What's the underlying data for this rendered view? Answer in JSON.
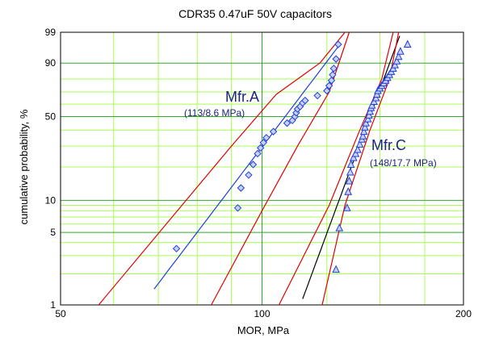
{
  "chart_data": {
    "type": "scatter",
    "title": "CDR35 0.47uF 50V capacitors",
    "xlabel": "MOR, MPa",
    "ylabel": "cumulative probability, %",
    "x_scale": "log",
    "y_scale": "weibull-probability",
    "xlim": [
      50,
      200
    ],
    "ylim": [
      1,
      99
    ],
    "x_ticks": [
      50,
      100,
      200
    ],
    "y_ticks": [
      1,
      5,
      10,
      50,
      90,
      99
    ],
    "grid": true,
    "colors": {
      "major_grid": "#2eaa2e",
      "minor_grid": "#aaff55",
      "fit_line": "#1f3fd6",
      "confidence_bounds": "#e00000",
      "mfr_c_fit_line": "#000000",
      "markers": "#1f3fd6",
      "annotation": "#1a237e"
    },
    "annotations": [
      {
        "text": "Mfr.A",
        "subtext": "(113/8.6 MPa)"
      },
      {
        "text": "Mfr.C",
        "subtext": "(148/17.7 MPa)"
      }
    ],
    "series": [
      {
        "name": "Mfr.A",
        "marker": "diamond",
        "points": [
          [
            74.5,
            3.5
          ],
          [
            92,
            8.5
          ],
          [
            93,
            13
          ],
          [
            95.5,
            17
          ],
          [
            97,
            21
          ],
          [
            98.5,
            26
          ],
          [
            99.5,
            29
          ],
          [
            100.5,
            32
          ],
          [
            101.5,
            35
          ],
          [
            104,
            39
          ],
          [
            109,
            45
          ],
          [
            111,
            47
          ],
          [
            112,
            50
          ],
          [
            112.5,
            53
          ],
          [
            113,
            56
          ],
          [
            114,
            58
          ],
          [
            115,
            61
          ],
          [
            116,
            63
          ],
          [
            121,
            67
          ],
          [
            125,
            71
          ],
          [
            126,
            75
          ],
          [
            127,
            79
          ],
          [
            127.5,
            83
          ],
          [
            128,
            87
          ],
          [
            129,
            92
          ],
          [
            130,
            97
          ]
        ]
      },
      {
        "name": "Mfr.C",
        "marker": "triangle",
        "points": [
          [
            129,
            2.2
          ],
          [
            130.5,
            5.5
          ],
          [
            134,
            8.5
          ],
          [
            134.5,
            12
          ],
          [
            135,
            15
          ],
          [
            135.5,
            18
          ],
          [
            135.8,
            21
          ],
          [
            137,
            24
          ],
          [
            138,
            26
          ],
          [
            139,
            28
          ],
          [
            140,
            31
          ],
          [
            141,
            34
          ],
          [
            141.5,
            36
          ],
          [
            142,
            39
          ],
          [
            142.5,
            42
          ],
          [
            143,
            45
          ],
          [
            144,
            48
          ],
          [
            144.5,
            51
          ],
          [
            145,
            54
          ],
          [
            145.5,
            57
          ],
          [
            146,
            59
          ],
          [
            147,
            62
          ],
          [
            148,
            65
          ],
          [
            148.5,
            68
          ],
          [
            149,
            71
          ],
          [
            150,
            73
          ],
          [
            151,
            75
          ],
          [
            152,
            77
          ],
          [
            153,
            79
          ],
          [
            154,
            81
          ],
          [
            155,
            83
          ],
          [
            156,
            85
          ],
          [
            157,
            87
          ],
          [
            158,
            89
          ],
          [
            159,
            91
          ],
          [
            160,
            93
          ],
          [
            161,
            95
          ],
          [
            165,
            97
          ]
        ]
      }
    ],
    "fits": [
      {
        "name": "Mfr.A",
        "eta": 113,
        "beta": 8.6,
        "x_range": [
          69,
          131
        ],
        "bounds": {
          "lower": [
            [
              57,
              1
            ],
            [
              90,
              30
            ],
            [
              105,
              68
            ],
            [
              122,
              90
            ],
            [
              133,
              99
            ]
          ],
          "upper": [
            [
              84,
              1
            ],
            [
              100,
              8
            ],
            [
              113,
              30
            ],
            [
              126,
              70
            ],
            [
              135,
              99
            ]
          ]
        }
      },
      {
        "name": "Mfr.C",
        "eta": 148,
        "beta": 17.7,
        "x_range": [
          114,
          162
        ],
        "bounds": {
          "lower": [
            [
              106,
              1
            ],
            [
              126,
              9
            ],
            [
              140,
              40
            ],
            [
              151,
              80
            ],
            [
              157,
              99
            ]
          ],
          "upper": [
            [
              123,
              1
            ],
            [
              133,
              9
            ],
            [
              145,
              40
            ],
            [
              155,
              80
            ],
            [
              160,
              99
            ]
          ]
        }
      }
    ]
  }
}
